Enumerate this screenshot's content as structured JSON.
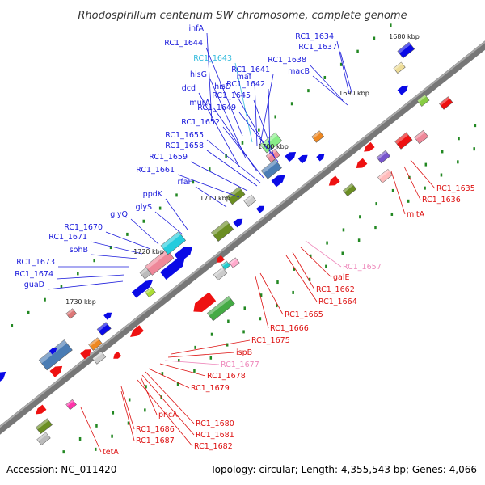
{
  "title": "Rhodospirillum centenum SW chromosome, complete genome",
  "footer": {
    "accession": "Accession: NC_011420",
    "stats": "Topology: circular; Length: 4,355,543 bp; Genes: 4,066"
  },
  "colors": {
    "backbone": "#777777",
    "label_blue": "#1a1adb",
    "label_red": "#dd1111",
    "label_cyan": "#33bbdd",
    "label_pink": "#ee88bb",
    "gene_blue": "#0a0ae6",
    "gene_red": "#ee1111",
    "gc_skew": "#228822"
  },
  "ticks": [
    {
      "label": "1680 kbp"
    },
    {
      "label": "1690 kbp"
    },
    {
      "label": "1700 kbp"
    },
    {
      "label": "1710 kbp"
    },
    {
      "label": "1720 kbp"
    },
    {
      "label": "1730 kbp"
    }
  ],
  "labels_upper": [
    {
      "text": "infA",
      "color": "blue"
    },
    {
      "text": "RC1_1644",
      "color": "blue"
    },
    {
      "text": "RC1_1643",
      "color": "cyan"
    },
    {
      "text": "maf",
      "color": "blue"
    },
    {
      "text": "RC1_1641",
      "color": "blue"
    },
    {
      "text": "hisG",
      "color": "blue"
    },
    {
      "text": "hisD",
      "color": "blue"
    },
    {
      "text": "RC1_1642",
      "color": "blue"
    },
    {
      "text": "dcd",
      "color": "blue"
    },
    {
      "text": "RC1_1645",
      "color": "blue"
    },
    {
      "text": "murA",
      "color": "blue"
    },
    {
      "text": "RC1_1649",
      "color": "blue"
    },
    {
      "text": "RC1_1652",
      "color": "blue"
    },
    {
      "text": "RC1_1655",
      "color": "blue"
    },
    {
      "text": "RC1_1658",
      "color": "blue"
    },
    {
      "text": "RC1_1659",
      "color": "blue"
    },
    {
      "text": "RC1_1661",
      "color": "blue"
    },
    {
      "text": "rfaF",
      "color": "blue"
    },
    {
      "text": "ppdK",
      "color": "blue"
    },
    {
      "text": "glyS",
      "color": "blue"
    },
    {
      "text": "glyQ",
      "color": "blue"
    },
    {
      "text": "RC1_1670",
      "color": "blue"
    },
    {
      "text": "RC1_1671",
      "color": "blue"
    },
    {
      "text": "sohB",
      "color": "blue"
    },
    {
      "text": "RC1_1673",
      "color": "blue"
    },
    {
      "text": "RC1_1674",
      "color": "blue"
    },
    {
      "text": "guaD",
      "color": "blue"
    },
    {
      "text": "RC1_1634",
      "color": "blue"
    },
    {
      "text": "RC1_1637",
      "color": "blue"
    },
    {
      "text": "RC1_1638",
      "color": "blue"
    },
    {
      "text": "macB",
      "color": "blue"
    }
  ],
  "labels_lower": [
    {
      "text": "RC1_1635",
      "color": "red"
    },
    {
      "text": "RC1_1636",
      "color": "red"
    },
    {
      "text": "mltA",
      "color": "red"
    },
    {
      "text": "RC1_1657",
      "color": "pink"
    },
    {
      "text": "galE",
      "color": "red"
    },
    {
      "text": "RC1_1662",
      "color": "red"
    },
    {
      "text": "RC1_1664",
      "color": "red"
    },
    {
      "text": "RC1_1665",
      "color": "red"
    },
    {
      "text": "RC1_1666",
      "color": "red"
    },
    {
      "text": "RC1_1675",
      "color": "red"
    },
    {
      "text": "ispB",
      "color": "red"
    },
    {
      "text": "RC1_1677",
      "color": "pink"
    },
    {
      "text": "RC1_1678",
      "color": "red"
    },
    {
      "text": "RC1_1679",
      "color": "red"
    },
    {
      "text": "pncA",
      "color": "red"
    },
    {
      "text": "RC1_1680",
      "color": "red"
    },
    {
      "text": "RC1_1686",
      "color": "red"
    },
    {
      "text": "RC1_1681",
      "color": "red"
    },
    {
      "text": "RC1_1687",
      "color": "red"
    },
    {
      "text": "RC1_1682",
      "color": "red"
    },
    {
      "text": "tetA",
      "color": "red"
    }
  ]
}
